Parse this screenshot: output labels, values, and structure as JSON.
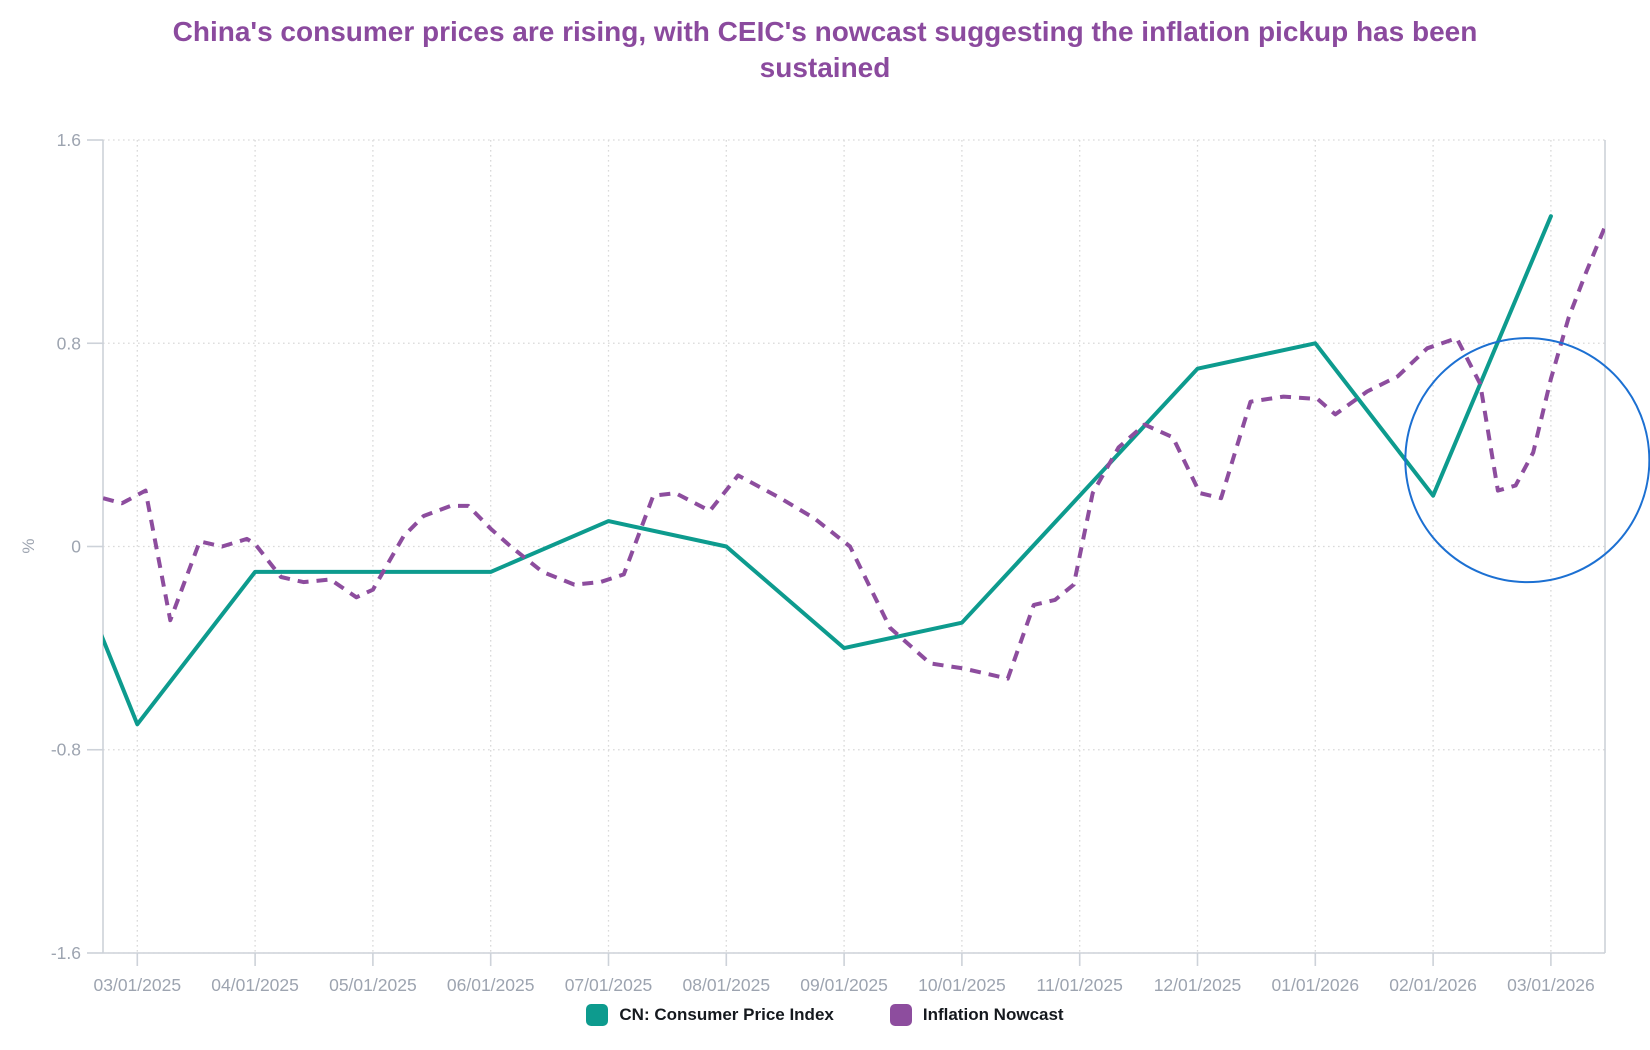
{
  "title": "China's consumer prices are rising, with CEIC's nowcast suggesting the inflation pickup has been sustained",
  "y_axis_title": "%",
  "legend": {
    "items": [
      {
        "label": "CN: Consumer Price Index",
        "color": "#0d9b8e"
      },
      {
        "label": "Inflation Nowcast",
        "color": "#8d4d9e"
      }
    ]
  },
  "chart_data": {
    "type": "line",
    "title": "China's consumer prices are rising, with CEIC's nowcast suggesting the inflation pickup has been sustained",
    "xlabel": "",
    "ylabel": "%",
    "ylim": [
      -1.6,
      1.6
    ],
    "grid": true,
    "legend_position": "bottom",
    "colors": {
      "cpi_line": "#0d9b8e",
      "nowcast_line": "#8d4d9e",
      "annotation_circle": "#1c70d2",
      "gridline": "#d9d9d9",
      "axis_line": "#cdd2d9",
      "tick_label": "#9da4b0",
      "title": "#8b4a9e"
    },
    "y_ticks": [
      {
        "value": 1.6,
        "label": "1.6"
      },
      {
        "value": 0.8,
        "label": "0.8"
      },
      {
        "value": 0,
        "label": "0"
      },
      {
        "value": -0.8,
        "label": "-0.8"
      },
      {
        "value": -1.6,
        "label": "-1.6"
      }
    ],
    "x_ticks": [
      {
        "month": 0,
        "label": "03/01/2025"
      },
      {
        "month": 1,
        "label": "04/01/2025"
      },
      {
        "month": 2,
        "label": "05/01/2025"
      },
      {
        "month": 3,
        "label": "06/01/2025"
      },
      {
        "month": 4,
        "label": "07/01/2025"
      },
      {
        "month": 5,
        "label": "08/01/2025"
      },
      {
        "month": 6,
        "label": "09/01/2025"
      },
      {
        "month": 7,
        "label": "10/01/2025"
      },
      {
        "month": 8,
        "label": "11/01/2025"
      },
      {
        "month": 9,
        "label": "12/01/2025"
      },
      {
        "month": 10,
        "label": "01/01/2026"
      },
      {
        "month": 11,
        "label": "02/01/2026"
      },
      {
        "month": 12,
        "label": "03/01/2026"
      }
    ],
    "series": [
      {
        "name": "CN: Consumer Price Index",
        "color": "#0d9b8e",
        "line_style": "solid",
        "points": [
          [
            -1,
            0.45
          ],
          [
            0,
            -0.7
          ],
          [
            1,
            -0.1
          ],
          [
            2,
            -0.1
          ],
          [
            3,
            -0.1
          ],
          [
            4,
            0.1
          ],
          [
            5,
            0.0
          ],
          [
            6,
            -0.4
          ],
          [
            7,
            -0.3
          ],
          [
            8,
            0.2
          ],
          [
            9,
            0.7
          ],
          [
            10,
            0.8
          ],
          [
            11,
            0.2
          ],
          [
            12,
            1.3
          ]
        ]
      },
      {
        "name": "Inflation Nowcast",
        "color": "#8d4d9e",
        "line_style": "dashed",
        "points": [
          [
            -0.29,
            0.19
          ],
          [
            -0.13,
            0.17
          ],
          [
            0.07,
            0.22
          ],
          [
            0.28,
            -0.29
          ],
          [
            0.53,
            0.02
          ],
          [
            0.72,
            0.0
          ],
          [
            0.93,
            0.03
          ],
          [
            1.0,
            0.01
          ],
          [
            1.22,
            -0.12
          ],
          [
            1.41,
            -0.14
          ],
          [
            1.64,
            -0.13
          ],
          [
            1.86,
            -0.2
          ],
          [
            2.0,
            -0.17
          ],
          [
            2.26,
            0.04
          ],
          [
            2.43,
            0.12
          ],
          [
            2.66,
            0.16
          ],
          [
            2.81,
            0.16
          ],
          [
            3.0,
            0.07
          ],
          [
            3.17,
            0.0
          ],
          [
            3.44,
            -0.1
          ],
          [
            3.71,
            -0.15
          ],
          [
            3.93,
            -0.14
          ],
          [
            4.13,
            -0.11
          ],
          [
            4.38,
            0.2
          ],
          [
            4.57,
            0.21
          ],
          [
            4.86,
            0.14
          ],
          [
            5.1,
            0.28
          ],
          [
            5.46,
            0.19
          ],
          [
            5.75,
            0.11
          ],
          [
            6.05,
            0.0
          ],
          [
            6.39,
            -0.32
          ],
          [
            6.73,
            -0.46
          ],
          [
            7.01,
            -0.48
          ],
          [
            7.39,
            -0.52
          ],
          [
            7.61,
            -0.23
          ],
          [
            7.79,
            -0.21
          ],
          [
            7.95,
            -0.15
          ],
          [
            8.11,
            0.21
          ],
          [
            8.33,
            0.39
          ],
          [
            8.55,
            0.48
          ],
          [
            8.79,
            0.43
          ],
          [
            9.02,
            0.21
          ],
          [
            9.2,
            0.19
          ],
          [
            9.45,
            0.57
          ],
          [
            9.73,
            0.59
          ],
          [
            10.02,
            0.58
          ],
          [
            10.17,
            0.52
          ],
          [
            10.44,
            0.61
          ],
          [
            10.7,
            0.67
          ],
          [
            10.95,
            0.78
          ],
          [
            11.2,
            0.82
          ],
          [
            11.4,
            0.64
          ],
          [
            11.55,
            0.22
          ],
          [
            11.7,
            0.24
          ],
          [
            11.85,
            0.37
          ],
          [
            12.0,
            0.66
          ],
          [
            12.15,
            0.9
          ],
          [
            12.3,
            1.08
          ],
          [
            12.46,
            1.26
          ]
        ]
      }
    ],
    "annotation": {
      "type": "circle",
      "center_month": 11.8,
      "center_value": 0.34,
      "radius_px": 122,
      "color": "#1c70d2"
    }
  }
}
